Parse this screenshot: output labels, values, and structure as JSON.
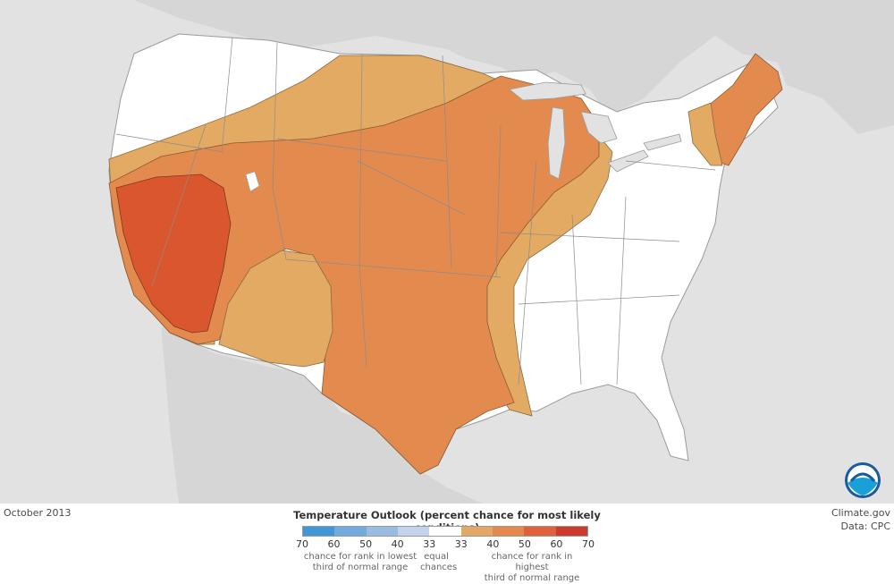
{
  "map": {
    "date": "October 2013",
    "legend_title": "Temperature Outlook (percent chance for most likely conditions)",
    "scale_ticks": [
      "70",
      "60",
      "50",
      "40",
      "33",
      "33",
      "40",
      "50",
      "60",
      "70"
    ],
    "scale_colors": [
      "#4196d8",
      "#72acde",
      "#99bde2",
      "#c3d3ec",
      "#ffffff",
      "#e3a865",
      "#e4884c",
      "#e1623a",
      "#cd3b2e"
    ],
    "note_below": "chance for rank in lowest\nthird of normal range",
    "note_equal": "equal\nchances",
    "note_above": "chance for rank in highest\nthird of normal range",
    "credit_site": "Climate.gov",
    "credit_data": "Data: CPC",
    "colors": {
      "above_33": "#e3aa64",
      "above_40": "#e38a4f",
      "above_50": "#d9562f",
      "background": "#e2e2e2",
      "land": "#ffffff"
    }
  }
}
